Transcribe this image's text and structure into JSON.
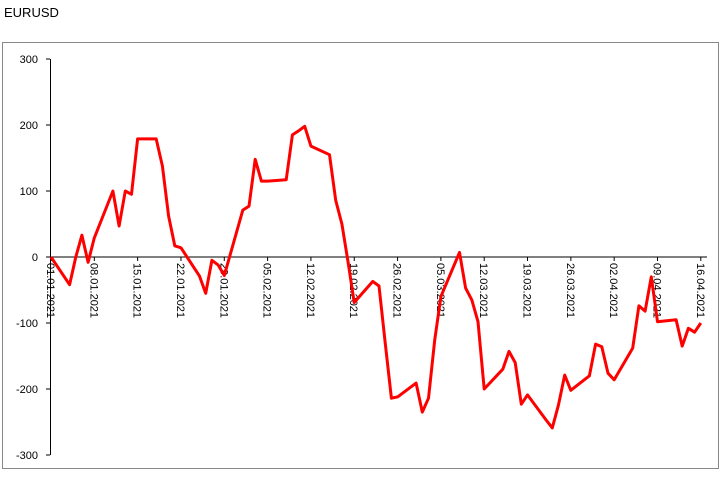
{
  "chart_data": {
    "type": "line",
    "title": "EURUSD",
    "x": [
      "01.01.2021",
      "04.01.2021",
      "05.01.2021",
      "06.01.2021",
      "07.01.2021",
      "08.01.2021",
      "11.01.2021",
      "12.01.2021",
      "13.01.2021",
      "14.01.2021",
      "15.01.2021",
      "18.01.2021",
      "19.01.2021",
      "20.01.2021",
      "21.01.2021",
      "22.01.2021",
      "25.01.2021",
      "26.01.2021",
      "27.01.2021",
      "28.01.2021",
      "29.01.2021",
      "01.02.2021",
      "02.02.2021",
      "03.02.2021",
      "04.02.2021",
      "05.02.2021",
      "08.02.2021",
      "09.02.2021",
      "10.02.2021",
      "11.02.2021",
      "12.02.2021",
      "15.02.2021",
      "16.02.2021",
      "17.02.2021",
      "18.02.2021",
      "19.02.2021",
      "22.02.2021",
      "23.02.2021",
      "24.02.2021",
      "25.02.2021",
      "26.02.2021",
      "01.03.2021",
      "02.03.2021",
      "03.03.2021",
      "04.03.2021",
      "05.03.2021",
      "08.03.2021",
      "09.03.2021",
      "10.03.2021",
      "11.03.2021",
      "12.03.2021",
      "15.03.2021",
      "16.03.2021",
      "17.03.2021",
      "18.03.2021",
      "19.03.2021",
      "22.03.2021",
      "23.03.2021",
      "24.03.2021",
      "25.03.2021",
      "26.03.2021",
      "29.03.2021",
      "30.03.2021",
      "31.03.2021",
      "01.04.2021",
      "02.04.2021",
      "05.04.2021",
      "06.04.2021",
      "07.04.2021",
      "08.04.2021",
      "09.04.2021",
      "12.04.2021",
      "13.04.2021",
      "14.04.2021",
      "15.04.2021",
      "16.04.2021"
    ],
    "series": [
      {
        "name": "EURUSD",
        "color": "#ff0000",
        "values": [
          0,
          -42,
          0,
          33,
          -8,
          29,
          100,
          47,
          100,
          95,
          179,
          179,
          138,
          62,
          17,
          14,
          -29,
          -55,
          -5,
          -12,
          -28,
          71,
          77,
          148,
          115,
          115,
          117,
          185,
          191,
          198,
          168,
          155,
          86,
          50,
          -8,
          -69,
          -37,
          -44,
          -130,
          -214,
          -212,
          -191,
          -235,
          -214,
          -126,
          -60,
          7,
          -47,
          -65,
          -98,
          -200,
          -170,
          -143,
          -160,
          -223,
          -209,
          -247,
          -259,
          -224,
          -179,
          -202,
          -180,
          -132,
          -136,
          -176,
          -186,
          -138,
          -74,
          -82,
          -30,
          -98,
          -95,
          -135,
          -108,
          -114,
          -100
        ]
      }
    ],
    "xlim": [
      "01.01.2021",
      "17.04.2021"
    ],
    "xticks": [
      "01.01.2021",
      "08.01.2021",
      "15.01.2021",
      "22.01.2021",
      "29.01.2021",
      "05.02.2021",
      "12.02.2021",
      "19.02.2021",
      "26.02.2021",
      "05.03.2021",
      "12.03.2021",
      "19.03.2021",
      "26.03.2021",
      "02.04.2021",
      "09.04.2021",
      "16.04.2021"
    ],
    "ylim": [
      -300,
      300
    ],
    "yticks": [
      -300,
      -200,
      -100,
      0,
      100,
      200,
      300
    ]
  }
}
